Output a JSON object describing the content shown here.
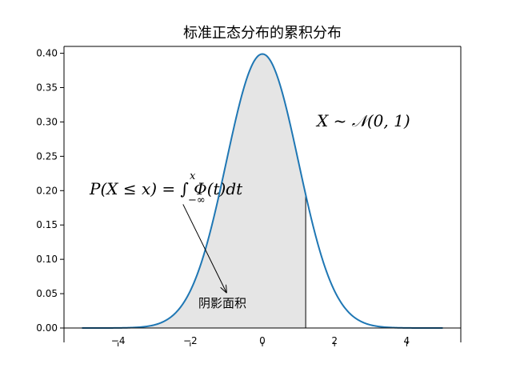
{
  "chart_data": {
    "type": "area",
    "title": "标准正态分布的累积分布",
    "xlabel": "",
    "ylabel": "",
    "xlim": [
      -5.5,
      5.5
    ],
    "ylim": [
      0,
      0.41
    ],
    "x_ticks": [
      -4,
      -2,
      0,
      2,
      4
    ],
    "x_tick_labels": [
      "−4",
      "−2",
      "0",
      "2",
      "4"
    ],
    "y_ticks": [
      0.0,
      0.05,
      0.1,
      0.15,
      0.2,
      0.25,
      0.3,
      0.35,
      0.4
    ],
    "y_tick_labels": [
      "0.00",
      "0.05",
      "0.10",
      "0.15",
      "0.20",
      "0.25",
      "0.30",
      "0.35",
      "0.40"
    ],
    "grid": false,
    "series": [
      {
        "distribution": "standard normal pdf",
        "mean": 0,
        "std": 1,
        "x_range": [
          -5,
          5
        ],
        "color": "#1f77b4"
      }
    ],
    "shaded_region": {
      "from": -5,
      "to": 1.2,
      "color": "#e5e5e5"
    },
    "cutoff_line": {
      "x": 1.2,
      "color": "#000000"
    },
    "annotations": {
      "distribution_label": "X ~ 𝒩(0, 1)",
      "formula_label": "P(X ≤ x) = ∫ Φ(t)dt",
      "formula_upper_limit": "x",
      "formula_lower_limit": "−∞",
      "arrow_text": "阴影面积",
      "arrow_from": [
        -2.2,
        0.18
      ],
      "arrow_to": [
        -1.0,
        0.052
      ]
    }
  }
}
